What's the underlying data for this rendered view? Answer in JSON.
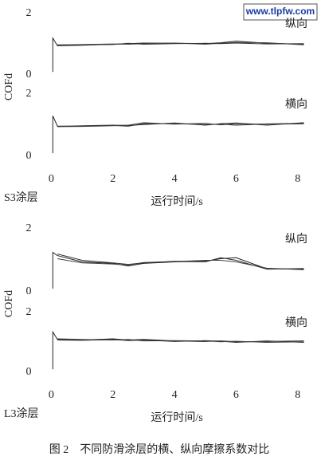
{
  "watermark": "www.tlpfw.com",
  "caption": "图 2　不同防滑涂层的横、纵向摩擦系数对比",
  "chart_data": [
    {
      "type": "line",
      "annotation": "纵向",
      "ylabel": "COFd",
      "ylim": [
        0,
        2
      ],
      "yticks": [
        0,
        2
      ],
      "xlim": [
        -0.45,
        8.55
      ],
      "x": [
        0.05,
        0.05,
        0.2,
        1,
        2,
        2.5,
        3,
        4,
        5,
        5.5,
        6,
        7,
        8.2
      ],
      "series": [
        {
          "color": "#222222",
          "values": [
            0.1,
            1.2,
            0.95,
            0.97,
            1.0,
            1.02,
            1.04,
            1.03,
            1.02,
            1.05,
            1.1,
            1.03,
            1.0
          ]
        },
        {
          "color": "#444444",
          "values": [
            null,
            null,
            0.98,
            0.99,
            1.01,
            1.0,
            1.02,
            1.04,
            1.0,
            1.03,
            1.06,
            1.05,
            0.98
          ]
        },
        {
          "color": "#333333",
          "values": [
            null,
            null,
            0.96,
            0.98,
            0.99,
            1.03,
            1.0,
            1.02,
            1.03,
            1.02,
            1.04,
            1.01,
            1.02
          ]
        }
      ]
    },
    {
      "type": "line",
      "annotation": "横向",
      "group_label": "S3涂层",
      "xlabel": "运行时间/s",
      "ylim": [
        0,
        2
      ],
      "yticks": [
        0,
        2
      ],
      "xlim": [
        -0.45,
        8.55
      ],
      "xticks": [
        0,
        2,
        4,
        6,
        8
      ],
      "x": [
        0.05,
        0.05,
        0.2,
        1,
        2,
        2.5,
        3,
        4,
        5,
        5.5,
        6,
        7,
        8.2
      ],
      "series": [
        {
          "color": "#222222",
          "values": [
            0.1,
            1.3,
            0.97,
            0.97,
            0.99,
            0.97,
            1.05,
            1.05,
            1.02,
            1.03,
            1.0,
            1.04,
            1.06
          ]
        },
        {
          "color": "#444444",
          "values": [
            null,
            null,
            0.95,
            0.96,
            0.98,
            1.0,
            1.08,
            1.03,
            1.06,
            1.01,
            1.05,
            1.03,
            1.04
          ]
        },
        {
          "color": "#333333",
          "values": [
            null,
            null,
            0.96,
            0.98,
            1.0,
            0.99,
            1.02,
            1.07,
            1.0,
            1.05,
            1.07,
            1.0,
            1.08
          ]
        }
      ]
    },
    {
      "type": "line",
      "annotation": "纵向",
      "ylabel": "COFd",
      "ylim": [
        0,
        2
      ],
      "yticks": [
        0,
        2
      ],
      "xlim": [
        -0.45,
        8.55
      ],
      "x": [
        0.05,
        0.05,
        0.2,
        1,
        2,
        2.5,
        3,
        4,
        5,
        5.5,
        6,
        7,
        8.2
      ],
      "series": [
        {
          "color": "#222222",
          "values": [
            0.1,
            1.25,
            1.15,
            0.95,
            0.9,
            0.82,
            0.9,
            0.95,
            0.97,
            1.05,
            1.08,
            0.73,
            0.72
          ]
        },
        {
          "color": "#444444",
          "values": [
            null,
            null,
            1.05,
            0.92,
            0.88,
            0.85,
            0.93,
            0.96,
            1.0,
            1.0,
            0.95,
            0.75,
            0.7
          ]
        },
        {
          "color": "#333333",
          "values": [
            null,
            null,
            1.2,
            1.0,
            0.92,
            0.87,
            0.92,
            0.97,
            0.95,
            1.08,
            1.0,
            0.72,
            0.74
          ]
        }
      ]
    },
    {
      "type": "line",
      "annotation": "横向",
      "group_label": "L3涂层",
      "xlabel": "运行时间/s",
      "ylim": [
        0,
        2
      ],
      "yticks": [
        0,
        2
      ],
      "xlim": [
        -0.45,
        8.55
      ],
      "xticks": [
        0,
        2,
        4,
        6,
        8
      ],
      "x": [
        0.05,
        0.05,
        0.2,
        1,
        2,
        2.5,
        3,
        4,
        5,
        5.5,
        6,
        7,
        8.2
      ],
      "series": [
        {
          "color": "#222222",
          "values": [
            0.1,
            1.35,
            1.1,
            1.08,
            1.12,
            1.08,
            1.1,
            1.05,
            1.03,
            1.05,
            1.02,
            1.03,
            1.05
          ]
        },
        {
          "color": "#444444",
          "values": [
            null,
            null,
            1.12,
            1.1,
            1.08,
            1.1,
            1.05,
            1.06,
            1.05,
            1.02,
            1.04,
            1.0,
            1.02
          ]
        },
        {
          "color": "#333333",
          "values": [
            null,
            null,
            1.08,
            1.07,
            1.1,
            1.06,
            1.08,
            1.03,
            1.06,
            1.04,
            1.0,
            1.05,
            1.0
          ]
        }
      ]
    }
  ]
}
